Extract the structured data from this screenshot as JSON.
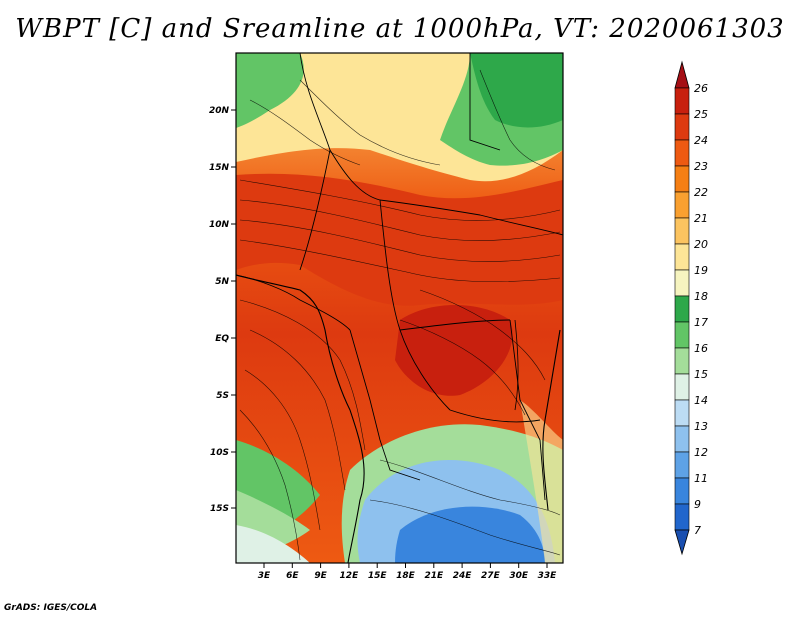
{
  "title": "WBPT [C] and Sreamline at 1000hPa, VT: 2020061303",
  "footer": "GrADS: IGES/COLA",
  "map": {
    "lat_labels": [
      "20N",
      "15N",
      "10N",
      "5N",
      "EQ",
      "5S",
      "10S",
      "15S"
    ],
    "lon_labels": [
      "3E",
      "6E",
      "9E",
      "12E",
      "15E",
      "18E",
      "21E",
      "24E",
      "27E",
      "30E",
      "33E"
    ]
  },
  "colorbar": {
    "levels": [
      "26",
      "25",
      "24",
      "23",
      "22",
      "21",
      "20",
      "19",
      "18",
      "17",
      "16",
      "15",
      "14",
      "13",
      "12",
      "11",
      "9",
      "7"
    ],
    "colors": [
      "#a50f15",
      "#c8200e",
      "#dd3a10",
      "#ee5a12",
      "#f57f14",
      "#f9a030",
      "#fcc460",
      "#fde597",
      "#f6f4c0",
      "#2ea84a",
      "#62c566",
      "#a4dd9a",
      "#dff1e6",
      "#bcdcf4",
      "#8ec1ee",
      "#5ea2e6",
      "#3985dd",
      "#2166cc",
      "#1a4fb0"
    ]
  }
}
